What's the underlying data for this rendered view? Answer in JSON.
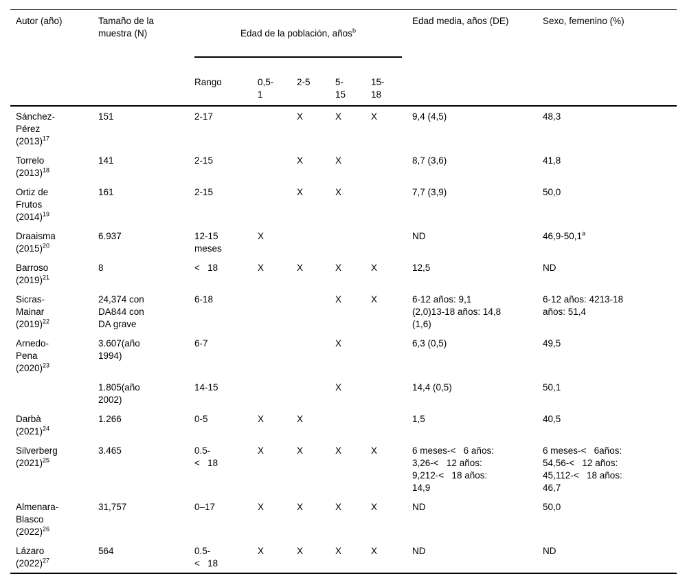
{
  "table": {
    "headers": {
      "author": "Autor (año)",
      "sample": "Tamaño de la\nmuestra (N)",
      "age_group": {
        "label": "Edad de la población, años",
        "sup": "b"
      },
      "age_cols": [
        "Rango",
        "0,5-\n1",
        "2-5",
        "5-\n15",
        "15-\n18"
      ],
      "mean_age": "Edad media, años (DE)",
      "female": "Sexo, femenino (%)"
    },
    "age_mark": "X",
    "rows": [
      {
        "author": {
          "lines": [
            "Sánchez-",
            "Pérez",
            "(2013)"
          ],
          "sup": "17"
        },
        "sample": "151",
        "range": "2-17",
        "ages": [
          "",
          "X",
          "X",
          "X"
        ],
        "mean": "9,4 (4,5)",
        "female": {
          "text": "48,3",
          "sup": ""
        }
      },
      {
        "author": {
          "lines": [
            "Torrelo",
            "(2013)"
          ],
          "sup": "18"
        },
        "sample": "141",
        "range": "2-15",
        "ages": [
          "",
          "X",
          "X",
          ""
        ],
        "mean": "8,7 (3,6)",
        "female": {
          "text": "41,8",
          "sup": ""
        }
      },
      {
        "author": {
          "lines": [
            "Ortiz de",
            "Frutos",
            "(2014)"
          ],
          "sup": "19"
        },
        "sample": "161",
        "range": "2-15",
        "ages": [
          "",
          "X",
          "X",
          ""
        ],
        "mean": "7,7 (3,9)",
        "female": {
          "text": "50,0",
          "sup": ""
        }
      },
      {
        "author": {
          "lines": [
            "Draaisma",
            "(2015)"
          ],
          "sup": "20"
        },
        "sample": "6.937",
        "range": "12-15\nmeses",
        "ages": [
          "X",
          "",
          "",
          ""
        ],
        "mean": "ND",
        "female": {
          "text": "46,9-50,1",
          "sup": "a"
        }
      },
      {
        "author": {
          "lines": [
            "Barroso",
            "(2019)"
          ],
          "sup": "21"
        },
        "sample": "8",
        "range": "<   18",
        "ages": [
          "X",
          "X",
          "X",
          "X"
        ],
        "mean": "12,5",
        "female": {
          "text": "ND",
          "sup": ""
        }
      },
      {
        "author": {
          "lines": [
            "Sicras-",
            "Mainar",
            "(2019)"
          ],
          "sup": "22"
        },
        "sample": "24,374 con\nDA844 con\nDA grave",
        "range": "6-18",
        "ages": [
          "",
          "",
          "X",
          "X"
        ],
        "mean": "6-12 años: 9,1\n(2,0)13-18 años: 14,8\n(1,6)",
        "female": {
          "text": "6-12 años: 4213-18\naños: 51,4",
          "sup": ""
        }
      },
      {
        "author": {
          "lines": [
            "Arnedo-",
            "Pena",
            "(2020)"
          ],
          "sup": "23"
        },
        "sample": "3.607(año\n1994)",
        "range": "6-7",
        "ages": [
          "",
          "",
          "X",
          ""
        ],
        "mean": "6,3 (0,5)",
        "female": {
          "text": "49,5",
          "sup": ""
        }
      },
      {
        "author": {
          "lines": [],
          "sup": ""
        },
        "sample": "1.805(año\n2002)",
        "range": "14-15",
        "ages": [
          "",
          "",
          "X",
          ""
        ],
        "mean": "14,4 (0,5)",
        "female": {
          "text": "50,1",
          "sup": ""
        }
      },
      {
        "author": {
          "lines": [
            "Darbà",
            "(2021)"
          ],
          "sup": "24"
        },
        "sample": "1.266",
        "range": "0-5",
        "ages": [
          "X",
          "X",
          "",
          ""
        ],
        "mean": "1,5",
        "female": {
          "text": "40,5",
          "sup": ""
        }
      },
      {
        "author": {
          "lines": [
            "Silverberg",
            "(2021)"
          ],
          "sup": "25"
        },
        "sample": "3.465",
        "range": "0.5-\n<   18",
        "ages": [
          "X",
          "X",
          "X",
          "X"
        ],
        "mean": "6 meses-<   6 años:\n3,26-<   12 años:\n9,212-<   18 años:\n14,9",
        "female": {
          "text": "6 meses-<   6años:\n54,56-<   12 años:\n45,112-<   18 años:\n46,7",
          "sup": ""
        }
      },
      {
        "author": {
          "lines": [
            "Almenara-",
            "Blasco",
            "(2022)"
          ],
          "sup": "26"
        },
        "sample": "31,757",
        "range": "0–17",
        "ages": [
          "X",
          "X",
          "X",
          "X"
        ],
        "mean": "ND",
        "female": {
          "text": "50,0",
          "sup": ""
        }
      },
      {
        "author": {
          "lines": [
            "Lázaro",
            "(2022)"
          ],
          "sup": "27"
        },
        "sample": "564",
        "range": "0.5-\n<   18",
        "ages": [
          "X",
          "X",
          "X",
          "X"
        ],
        "mean": "ND",
        "female": {
          "text": "ND",
          "sup": ""
        }
      }
    ]
  }
}
